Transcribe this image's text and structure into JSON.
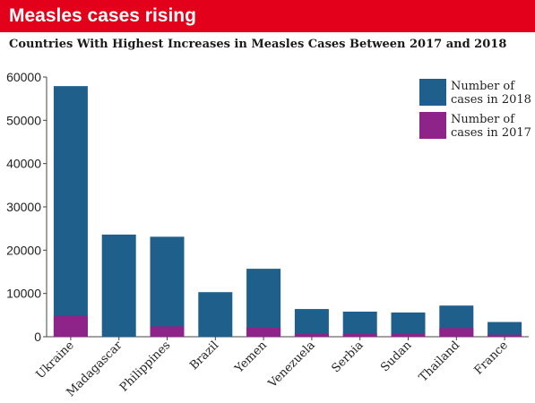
{
  "banner": {
    "title": "Measles cases rising"
  },
  "chart_data": {
    "type": "bar",
    "stacked": false,
    "overlay": true,
    "title": "Countries With Highest Increases in Measles Cases Between 2017 and 2018",
    "xlabel": "",
    "ylabel": "",
    "categories": [
      "Ukraine",
      "Madagascar",
      "Philippines",
      "Brazil",
      "Yemen",
      "Venezuela",
      "Serbia",
      "Sudan",
      "Thailand",
      "France"
    ],
    "series": [
      {
        "name": "Number of cases in 2018",
        "legend_lines": [
          "Number of",
          "cases in 2018"
        ],
        "color": "#1f5f8b",
        "values": [
          57900,
          23600,
          23100,
          10300,
          15700,
          6400,
          5800,
          5600,
          7200,
          3400
        ]
      },
      {
        "name": "Number of cases in 2017",
        "legend_lines": [
          "Number of",
          "cases in 2017"
        ],
        "color": "#8e2389",
        "values": [
          4800,
          0,
          2400,
          0,
          2100,
          700,
          700,
          700,
          2000,
          500
        ]
      }
    ],
    "ylim": [
      0,
      60000
    ],
    "yticks": [
      "0",
      "10000",
      "20000",
      "30000",
      "40000",
      "50000",
      "60000"
    ],
    "grid": false,
    "legend_position": "top-right"
  }
}
